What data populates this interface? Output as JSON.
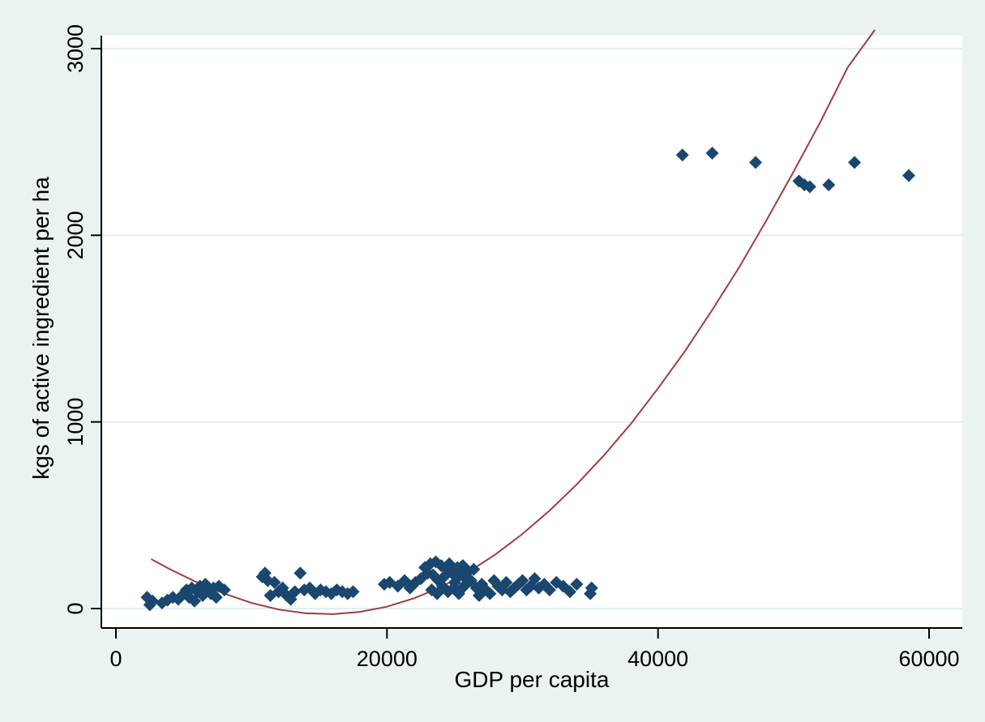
{
  "chart_data": {
    "type": "scatter",
    "title": "",
    "xlabel": "GDP per capita",
    "ylabel": "kgs of active ingredient per ha",
    "xlim": [
      0,
      60000
    ],
    "ylim": [
      0,
      3000
    ],
    "x_ticks": [
      "0",
      "20000",
      "40000",
      "60000"
    ],
    "y_ticks": [
      "0",
      "1000",
      "2000",
      "3000"
    ],
    "grid": "horizontal",
    "legend": "none",
    "colors": {
      "background": "#eaf2f3",
      "plot_area": "#ffffff",
      "marker": "#1a476f",
      "fit_line": "#a03c3c",
      "grid": "#e3eeef"
    },
    "series": [
      {
        "kind": "scatter",
        "marker": "diamond",
        "points": [
          [
            2300,
            60
          ],
          [
            2500,
            20
          ],
          [
            2700,
            40
          ],
          [
            3400,
            30
          ],
          [
            3800,
            45
          ],
          [
            4200,
            60
          ],
          [
            4600,
            50
          ],
          [
            5000,
            80
          ],
          [
            5200,
            100
          ],
          [
            5400,
            60
          ],
          [
            5600,
            110
          ],
          [
            5800,
            40
          ],
          [
            6000,
            90
          ],
          [
            6200,
            120
          ],
          [
            6400,
            70
          ],
          [
            6600,
            130
          ],
          [
            6800,
            100
          ],
          [
            7000,
            80
          ],
          [
            7200,
            110
          ],
          [
            7400,
            60
          ],
          [
            7600,
            120
          ],
          [
            8000,
            100
          ],
          [
            10800,
            170
          ],
          [
            11000,
            190
          ],
          [
            11200,
            150
          ],
          [
            11400,
            70
          ],
          [
            11700,
            140
          ],
          [
            12000,
            90
          ],
          [
            12300,
            110
          ],
          [
            12600,
            70
          ],
          [
            12900,
            50
          ],
          [
            13200,
            90
          ],
          [
            13600,
            190
          ],
          [
            13900,
            100
          ],
          [
            14300,
            110
          ],
          [
            14700,
            80
          ],
          [
            15100,
            100
          ],
          [
            15500,
            90
          ],
          [
            15900,
            80
          ],
          [
            16300,
            100
          ],
          [
            16700,
            90
          ],
          [
            17100,
            80
          ],
          [
            17500,
            90
          ],
          [
            19800,
            130
          ],
          [
            20200,
            140
          ],
          [
            20800,
            120
          ],
          [
            21300,
            150
          ],
          [
            21700,
            110
          ],
          [
            22100,
            140
          ],
          [
            22500,
            160
          ],
          [
            22800,
            220
          ],
          [
            23000,
            190
          ],
          [
            23200,
            240
          ],
          [
            23400,
            180
          ],
          [
            23600,
            250
          ],
          [
            23800,
            150
          ],
          [
            24000,
            230
          ],
          [
            24200,
            170
          ],
          [
            24400,
            210
          ],
          [
            24600,
            240
          ],
          [
            24800,
            190
          ],
          [
            25000,
            140
          ],
          [
            25200,
            220
          ],
          [
            25400,
            180
          ],
          [
            25600,
            230
          ],
          [
            25800,
            160
          ],
          [
            23300,
            100
          ],
          [
            23700,
            80
          ],
          [
            24100,
            120
          ],
          [
            24500,
            90
          ],
          [
            24900,
            110
          ],
          [
            25300,
            80
          ],
          [
            25700,
            120
          ],
          [
            26000,
            200
          ],
          [
            26200,
            150
          ],
          [
            26400,
            210
          ],
          [
            26600,
            110
          ],
          [
            26800,
            70
          ],
          [
            27000,
            130
          ],
          [
            27300,
            100
          ],
          [
            27600,
            80
          ],
          [
            27900,
            150
          ],
          [
            28200,
            120
          ],
          [
            28500,
            100
          ],
          [
            28800,
            140
          ],
          [
            29100,
            90
          ],
          [
            29400,
            110
          ],
          [
            29700,
            130
          ],
          [
            30000,
            150
          ],
          [
            30300,
            100
          ],
          [
            30600,
            120
          ],
          [
            30900,
            160
          ],
          [
            31200,
            110
          ],
          [
            31600,
            130
          ],
          [
            32000,
            100
          ],
          [
            32500,
            140
          ],
          [
            33000,
            120
          ],
          [
            33500,
            90
          ],
          [
            34000,
            130
          ],
          [
            35000,
            80
          ],
          [
            35100,
            110
          ],
          [
            41800,
            2430
          ],
          [
            44000,
            2440
          ],
          [
            47200,
            2390
          ],
          [
            50400,
            2290
          ],
          [
            50800,
            2270
          ],
          [
            51200,
            2260
          ],
          [
            52600,
            2270
          ],
          [
            54500,
            2390
          ],
          [
            58500,
            2320
          ]
        ]
      },
      {
        "kind": "fit_line",
        "shape": "quadratic",
        "points": [
          [
            2600,
            265
          ],
          [
            4000,
            210
          ],
          [
            6000,
            140
          ],
          [
            8000,
            80
          ],
          [
            10000,
            30
          ],
          [
            12000,
            -5
          ],
          [
            14000,
            -25
          ],
          [
            16000,
            -30
          ],
          [
            18000,
            -18
          ],
          [
            20000,
            10
          ],
          [
            22000,
            55
          ],
          [
            24000,
            115
          ],
          [
            26000,
            195
          ],
          [
            28000,
            290
          ],
          [
            30000,
            400
          ],
          [
            32000,
            525
          ],
          [
            34000,
            665
          ],
          [
            36000,
            820
          ],
          [
            38000,
            990
          ],
          [
            40000,
            1180
          ],
          [
            42000,
            1380
          ],
          [
            44000,
            1600
          ],
          [
            46000,
            1830
          ],
          [
            48000,
            2080
          ],
          [
            50000,
            2340
          ],
          [
            52000,
            2610
          ],
          [
            54000,
            2900
          ],
          [
            56000,
            3100
          ]
        ]
      }
    ]
  }
}
